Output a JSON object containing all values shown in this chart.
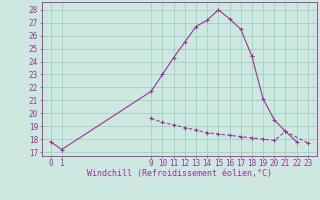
{
  "x_hours": [
    0,
    1,
    9,
    10,
    11,
    12,
    13,
    14,
    15,
    16,
    17,
    18,
    19,
    20,
    21,
    22,
    23
  ],
  "temp_values": [
    17.8,
    17.2,
    21.7,
    23.0,
    24.3,
    25.5,
    26.7,
    27.2,
    28.0,
    27.3,
    26.5,
    24.4,
    21.1,
    19.5,
    18.6,
    17.8,
    null
  ],
  "wind_values": [
    null,
    null,
    19.6,
    19.3,
    19.1,
    18.9,
    18.7,
    18.5,
    18.4,
    18.3,
    18.2,
    18.1,
    18.0,
    17.9,
    18.6,
    null,
    17.7
  ],
  "line_color": "#993399",
  "bg_color": "#cce8e0",
  "grid_color": "#99ccbb",
  "ylabel_ticks": [
    17,
    18,
    19,
    20,
    21,
    22,
    23,
    24,
    25,
    26,
    27,
    28
  ],
  "xlabel": "Windchill (Refroidissement éolien,°C)",
  "xlim": [
    -0.8,
    23.8
  ],
  "ylim": [
    16.7,
    28.6
  ],
  "tick_fontsize": 5.5,
  "label_fontsize": 6.0
}
